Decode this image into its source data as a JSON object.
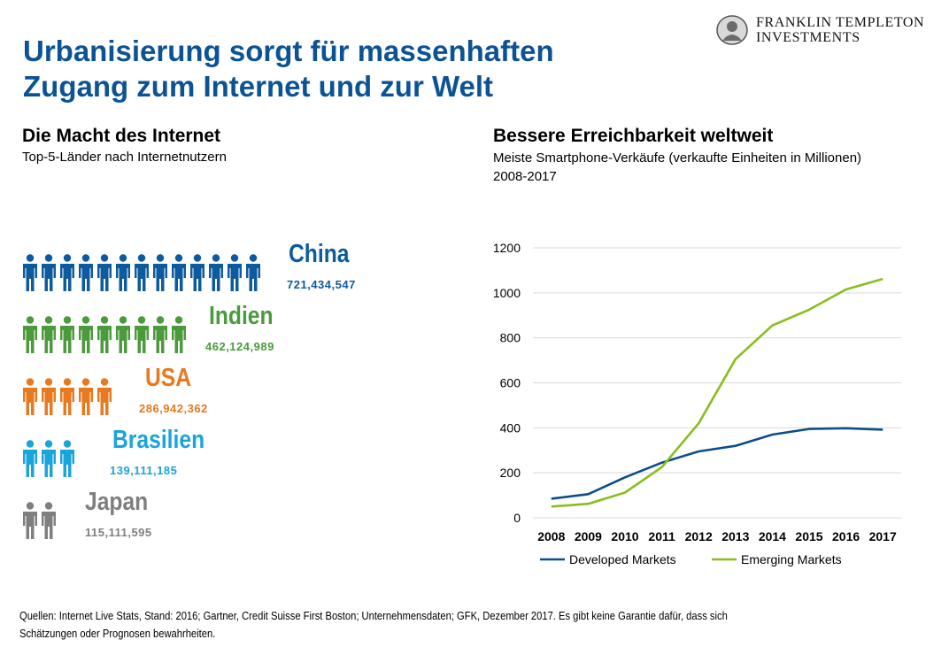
{
  "header": {
    "title_line1": "Urbanisierung  sorgt für massenhaften",
    "title_line2": "Zugang zum Internet und zur Welt",
    "brand_line1": "FRANKLIN TEMPLETON",
    "brand_line2": "INVESTMENTS",
    "brand_icon": "portrait-seal-icon"
  },
  "left_panel": {
    "title": "Die Macht des Internet",
    "subtitle": "Top-5-Länder nach Internetnutzern",
    "person_icon": "person-icon",
    "countries": [
      {
        "name": "China",
        "users": "721,434,547",
        "icons": 13,
        "color": "#0d5a9e"
      },
      {
        "name": "Indien",
        "users": "462,124,989",
        "icons": 9,
        "color": "#4b9a3b"
      },
      {
        "name": "USA",
        "users": "286,942,362",
        "icons": 5,
        "color": "#e8791e"
      },
      {
        "name": "Brasilien",
        "users": "139,111,185",
        "icons": 3,
        "color": "#1aa4dc"
      },
      {
        "name": "Japan",
        "users": "115,111,595",
        "icons": 2,
        "color": "#7f7f7f"
      }
    ]
  },
  "right_panel": {
    "title": "Bessere Erreichbarkeit weltweit",
    "subtitle": "Meiste Smartphone-Verkäufe  (verkaufte Einheiten in Millionen)",
    "subtitle2": "2008-2017"
  },
  "chart_data": {
    "type": "line",
    "x": [
      "2008",
      "2009",
      "2010",
      "2011",
      "2012",
      "2013",
      "2014",
      "2015",
      "2016",
      "2017"
    ],
    "yticks": [
      "0",
      "200",
      "400",
      "600",
      "800",
      "1000",
      "1200"
    ],
    "ylim": [
      0,
      1200
    ],
    "grid": true,
    "legend_position": "bottom",
    "series": [
      {
        "name": "Developed Markets",
        "color": "#0b4f8a",
        "values": [
          85,
          105,
          180,
          245,
          295,
          320,
          370,
          395,
          398,
          392
        ]
      },
      {
        "name": "Emerging Markets",
        "color": "#8bbd1e",
        "values": [
          50,
          62,
          112,
          225,
          420,
          705,
          855,
          925,
          1015,
          1062
        ]
      }
    ]
  },
  "footnote": {
    "line1": "Quellen: Internet  Live  Stats,  Stand:  2016;  Gartner,  Credit  Suisse  First  Boston;  Unternehmensdaten;  GFK,  Dezember  2017.  Es  gibt  keine  Garantie  dafür,  dass  sich",
    "line2": "Schätzungen  oder  Prognosen  bewahrheiten."
  }
}
